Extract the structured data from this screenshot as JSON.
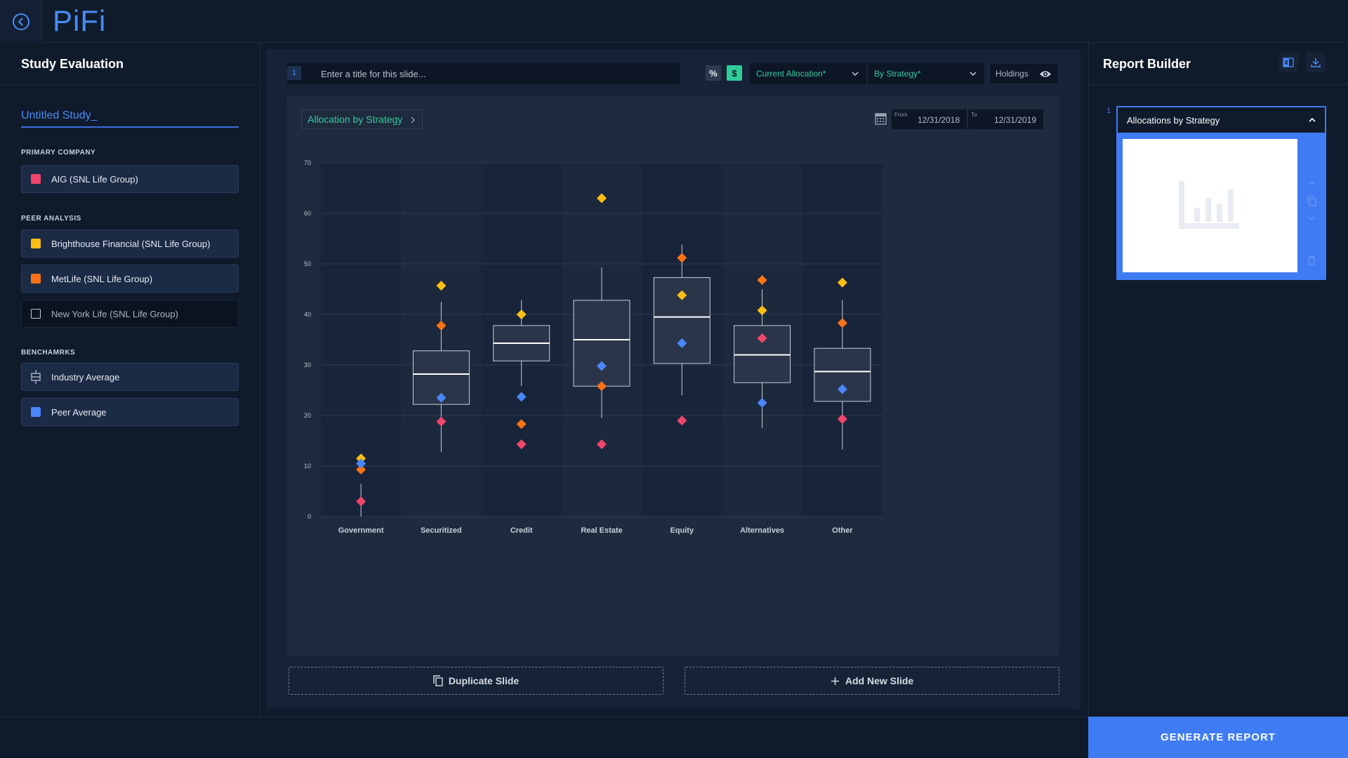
{
  "app": {
    "logo": "PiFi"
  },
  "left_panel": {
    "title": "Study Evaluation",
    "study_name": "Untitled Study_",
    "primary_label": "PRIMARY COMPANY",
    "primary": {
      "name": "AIG (SNL Life Group)",
      "color": "#f0456a"
    },
    "peer_label": "PEER ANALYSIS",
    "peers": [
      {
        "name": "Brighthouse Financial (SNL Life Group)",
        "color": "#fbbf14",
        "checked": true
      },
      {
        "name": "MetLife (SNL Life Group)",
        "color": "#f97316",
        "checked": true
      },
      {
        "name": "New York Life (SNL Life Group)",
        "color": "",
        "checked": false
      }
    ],
    "bench_label": "BENCHAMRKS",
    "benchmarks": [
      {
        "name": "Industry Average",
        "icon": "box-plot-icon"
      },
      {
        "name": "Peer Average",
        "color": "#4a86f7"
      }
    ]
  },
  "toolbar": {
    "slide_number": "1",
    "title_placeholder": "Enter a title for this slide...",
    "percent_symbol": "%",
    "dollar_symbol": "$",
    "allocation_select": "Current Allocation*",
    "strategy_select": "By Strategy*",
    "holdings_label": "Holdings"
  },
  "chart_header": {
    "breadcrumb": "Allocation by Strategy",
    "from_label": "From",
    "from_date": "12/31/2018",
    "to_label": "To",
    "to_date": "12/31/2019"
  },
  "chart_data": {
    "type": "box",
    "categories": [
      "Government",
      "Securitized",
      "Credit",
      "Real Estate",
      "Equity",
      "Alternatives",
      "Other"
    ],
    "ylim": [
      0,
      70
    ],
    "yticks": [
      0,
      10,
      20,
      30,
      40,
      50,
      60,
      70
    ],
    "grid": true,
    "boxes": [
      {
        "whisker_low": 0,
        "q1": null,
        "median": null,
        "q3": null,
        "whisker_high": 6.5
      },
      {
        "whisker_low": 12.8,
        "q1": 22.2,
        "median": 28.2,
        "q3": 32.8,
        "whisker_high": 42.5
      },
      {
        "whisker_low": 25.8,
        "q1": 30.8,
        "median": 34.3,
        "q3": 37.8,
        "whisker_high": 42.8
      },
      {
        "whisker_low": 19.5,
        "q1": 25.8,
        "median": 35.0,
        "q3": 42.8,
        "whisker_high": 49.3
      },
      {
        "whisker_low": 24.0,
        "q1": 30.3,
        "median": 39.5,
        "q3": 47.3,
        "whisker_high": 53.8
      },
      {
        "whisker_low": 17.5,
        "q1": 26.5,
        "median": 32.0,
        "q3": 37.8,
        "whisker_high": 45.0
      },
      {
        "whisker_low": 13.3,
        "q1": 22.8,
        "median": 28.7,
        "q3": 33.3,
        "whisker_high": 42.8
      }
    ],
    "series": [
      {
        "name": "AIG (SNL Life Group)",
        "color": "#f0456a",
        "values": [
          3.0,
          18.8,
          14.3,
          14.3,
          19.0,
          35.3,
          19.3
        ]
      },
      {
        "name": "Brighthouse Financial (SNL Life Group)",
        "color": "#fbbf14",
        "values": [
          11.5,
          45.7,
          40.0,
          63.0,
          43.8,
          40.8,
          46.3
        ]
      },
      {
        "name": "MetLife (SNL Life Group)",
        "color": "#f97316",
        "values": [
          9.3,
          37.8,
          18.3,
          25.8,
          51.2,
          46.8,
          38.3
        ]
      },
      {
        "name": "Peer Average",
        "color": "#4a86f7",
        "values": [
          10.5,
          23.5,
          23.7,
          29.8,
          34.3,
          22.5,
          25.2
        ]
      }
    ]
  },
  "actions": {
    "duplicate": "Duplicate Slide",
    "add": "Add New Slide"
  },
  "report_builder": {
    "title": "Report Builder",
    "slide_number": "1",
    "slide_title": "Allocations by Strategy",
    "generate": "GENERATE REPORT"
  }
}
